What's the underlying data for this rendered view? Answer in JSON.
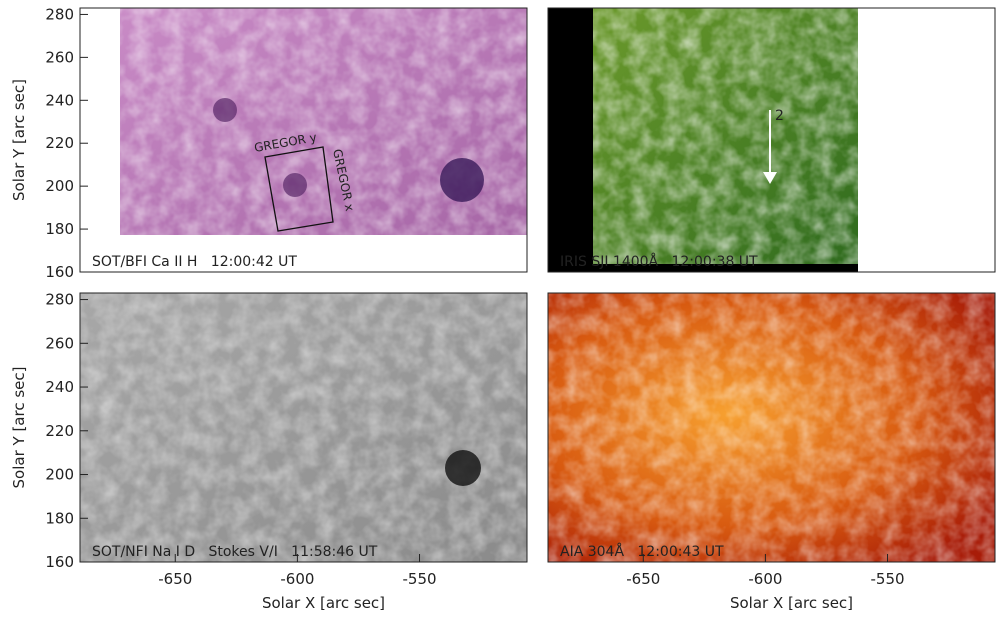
{
  "chart_data": [
    {
      "type": "image",
      "label": "SOT/BFI Ca II H   12:00:42 UT",
      "ylabel": "Solar Y [arc sec]",
      "xlim": [
        -689,
        -506
      ],
      "ylim": [
        160,
        283
      ],
      "yticks": [
        160,
        180,
        200,
        220,
        240,
        260,
        280
      ],
      "annotations": [
        "GREGOR y",
        "GREGOR x"
      ]
    },
    {
      "type": "image",
      "label": "IRIS SJI 1400Å   12:00:38 UT",
      "xlim": [
        -689,
        -506
      ],
      "ylim": [
        160,
        283
      ],
      "annotations": [
        "2"
      ]
    },
    {
      "type": "image",
      "label": "SOT/NFI Na I D   Stokes V/I   11:58:46 UT",
      "ylabel": "Solar Y [arc sec]",
      "xlabel": "Solar X [arc sec]",
      "xlim": [
        -689,
        -506
      ],
      "ylim": [
        160,
        283
      ],
      "xticks": [
        -650,
        -600,
        -550
      ],
      "yticks": [
        160,
        180,
        200,
        220,
        240,
        260,
        280
      ]
    },
    {
      "type": "image",
      "label": "AIA 304Å   12:00:43 UT",
      "xlabel": "Solar X [arc sec]",
      "xlim": [
        -689,
        -506
      ],
      "ylim": [
        160,
        283
      ],
      "xticks": [
        -650,
        -600,
        -550
      ]
    }
  ]
}
